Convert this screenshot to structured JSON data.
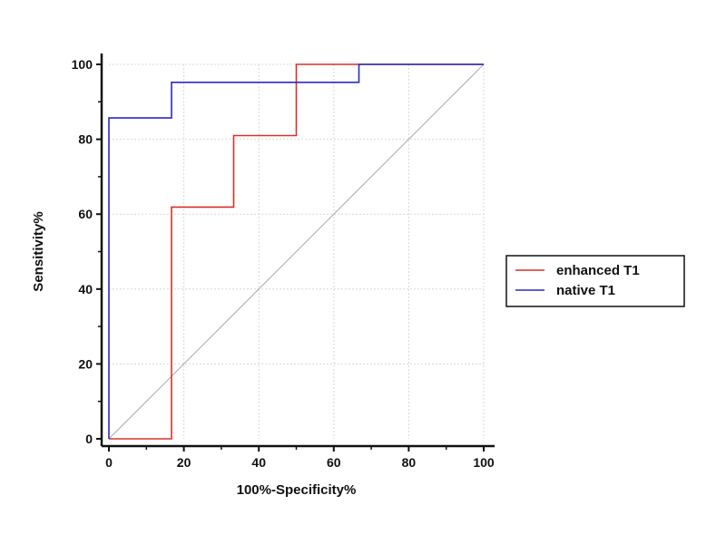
{
  "chart_data": {
    "type": "line",
    "xlabel": "100%-Specificity%",
    "ylabel": "Sensitivity%",
    "xlim": [
      0,
      100
    ],
    "ylim": [
      0,
      100
    ],
    "x_ticks": [
      "0",
      "20",
      "40",
      "60",
      "80",
      "100"
    ],
    "y_ticks": [
      "0",
      "20",
      "40",
      "60",
      "80",
      "100"
    ],
    "grid": true,
    "legend_position": "right",
    "reference_line": {
      "x": [
        0,
        100
      ],
      "y": [
        0,
        100
      ],
      "color": "#aaaaaa"
    },
    "series": [
      {
        "name": "enhanced T1",
        "color": "#d9302a",
        "x": [
          0,
          16.7,
          16.7,
          33.3,
          33.3,
          50,
          50,
          100
        ],
        "y": [
          0,
          0,
          61.9,
          61.9,
          81,
          81,
          100,
          100
        ]
      },
      {
        "name": "native T1",
        "color": "#2a2ac0",
        "x": [
          0,
          0,
          16.7,
          16.7,
          66.7,
          66.7,
          100
        ],
        "y": [
          0,
          85.7,
          85.7,
          95.2,
          95.2,
          100,
          100
        ]
      }
    ]
  }
}
